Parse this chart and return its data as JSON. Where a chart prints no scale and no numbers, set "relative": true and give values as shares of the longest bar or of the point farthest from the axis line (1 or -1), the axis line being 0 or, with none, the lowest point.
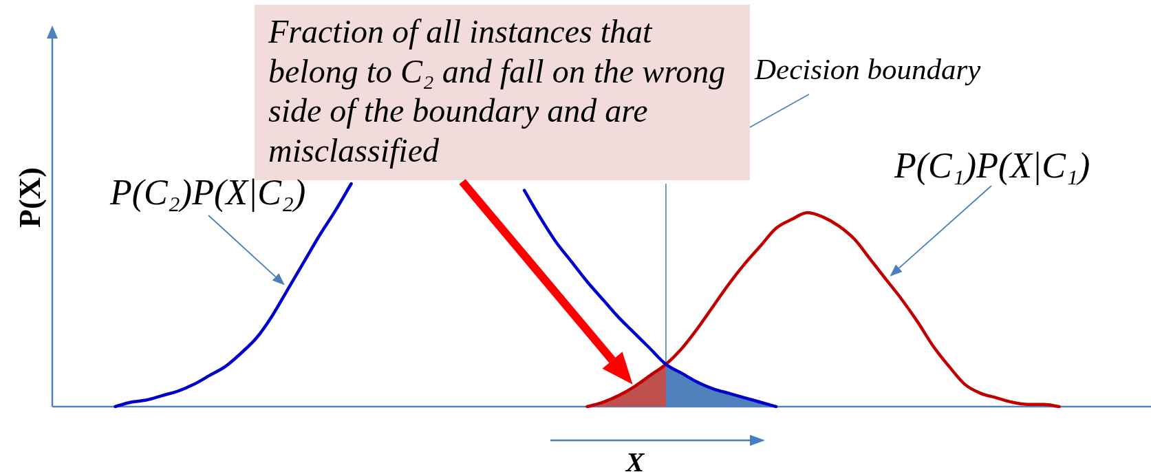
{
  "chart_data": {
    "type": "line",
    "relative": true,
    "xlabel": "X",
    "ylabel": "P(X)",
    "categories": [
      null,
      null,
      null,
      null,
      null,
      null,
      null,
      null,
      null,
      null,
      null,
      null,
      null,
      null,
      null,
      null,
      null,
      null,
      null,
      null,
      null,
      null,
      null,
      null,
      null,
      null,
      null,
      null,
      null,
      null,
      null,
      null,
      null,
      null,
      null,
      null,
      null,
      null,
      null,
      null,
      null,
      null,
      null,
      null,
      null,
      null,
      null,
      null,
      null,
      null,
      null,
      null,
      null,
      null,
      null,
      null,
      null,
      null,
      null,
      null,
      null,
      null,
      null,
      null,
      null,
      null,
      null,
      null,
      null,
      null
    ],
    "series": [
      {
        "name": "P(C₂)P(X|C₂)",
        "color": "#0000cc",
        "values": [
          null,
          null,
          null,
          null,
          0,
          0.02,
          0.03,
          0.05,
          0.07,
          0.1,
          0.14,
          0.18,
          0.24,
          0.31,
          0.41,
          0.53,
          0.65,
          0.77,
          0.88,
          1,
          null,
          null,
          null,
          null,
          null,
          null,
          null,
          null,
          null,
          null,
          0.97,
          0.85,
          0.74,
          0.65,
          0.56,
          0.48,
          0.4,
          0.33,
          0.26,
          0.19,
          0.15,
          0.11,
          0.08,
          0.06,
          0.04,
          0.02,
          0,
          null,
          null,
          null,
          null,
          null,
          null,
          null,
          null,
          null,
          null,
          null,
          null,
          null,
          null,
          null,
          null,
          null,
          null,
          null,
          null,
          null,
          null,
          null
        ]
      },
      {
        "name": "P(C₁)P(X|C₁)",
        "color": "#c00000",
        "values": [
          null,
          null,
          null,
          null,
          null,
          null,
          null,
          null,
          null,
          null,
          null,
          null,
          null,
          null,
          null,
          null,
          null,
          null,
          null,
          null,
          null,
          null,
          null,
          null,
          null,
          null,
          null,
          null,
          null,
          null,
          null,
          null,
          null,
          null,
          0,
          0.02,
          0.05,
          0.09,
          0.14,
          0.19,
          0.26,
          0.35,
          0.45,
          0.55,
          0.64,
          0.72,
          0.8,
          0.84,
          0.87,
          0.85,
          0.81,
          0.75,
          0.66,
          0.57,
          0.48,
          0.38,
          0.27,
          0.18,
          0.1,
          0.06,
          0.04,
          0.02,
          0.01,
          0.01,
          0,
          null,
          null,
          null,
          null,
          null
        ]
      },
      {
        "type": "area",
        "color": "#c0504d",
        "values": [
          null,
          null,
          null,
          null,
          null,
          null,
          null,
          null,
          null,
          null,
          null,
          null,
          null,
          null,
          null,
          null,
          null,
          null,
          null,
          null,
          null,
          null,
          null,
          null,
          null,
          null,
          null,
          null,
          null,
          null,
          null,
          null,
          null,
          null,
          0,
          0.02,
          0.05,
          0.09,
          0.14,
          0.19,
          null,
          null,
          null,
          null,
          null,
          null,
          null,
          null,
          null,
          null,
          null,
          null,
          null,
          null,
          null,
          null,
          null,
          null,
          null,
          null,
          null,
          null,
          null,
          null,
          null,
          null,
          null,
          null,
          null,
          null
        ]
      },
      {
        "type": "area",
        "color": "#4f81bd",
        "values": [
          null,
          null,
          null,
          null,
          null,
          null,
          null,
          null,
          null,
          null,
          null,
          null,
          null,
          null,
          null,
          null,
          null,
          null,
          null,
          null,
          null,
          null,
          null,
          null,
          null,
          null,
          null,
          null,
          null,
          null,
          null,
          null,
          null,
          null,
          null,
          null,
          null,
          null,
          null,
          0.19,
          0.15,
          0.11,
          0.08,
          0.06,
          0.04,
          0.02,
          0,
          null,
          null,
          null,
          null,
          null,
          null,
          null,
          null,
          null,
          null,
          null,
          null,
          null,
          null,
          null,
          null,
          null,
          null,
          null,
          null,
          null,
          null,
          null
        ]
      }
    ],
    "annotations": [
      "Fraction of all instances that belong to C₂ and fall on the wrong side of the boundary and are misclassified",
      "Decision boundary"
    ]
  }
}
